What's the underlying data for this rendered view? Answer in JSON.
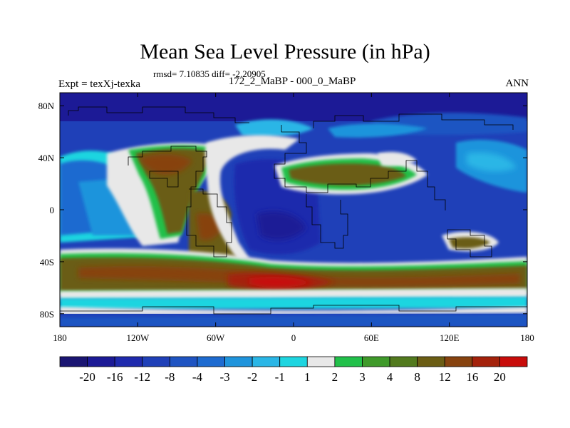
{
  "title": "Mean Sea Level Pressure (in hPa)",
  "stats_line": "rmsd= 7.10835  diff= -2.20905",
  "experiment_label": "Expt = texXj-texka",
  "subtitle": "172_2_MaBP - 000_0_MaBP",
  "season_label": "ANN",
  "map": {
    "lon_range": [
      -180,
      180
    ],
    "lat_range": [
      -90,
      90
    ],
    "x_tick_labels": [
      "180",
      "120W",
      "60W",
      "0",
      "60E",
      "120E",
      "180"
    ],
    "y_tick_labels": [
      "80N",
      "40N",
      "0",
      "40S",
      "80S"
    ]
  },
  "colorbar": {
    "colors": [
      "#1a1572",
      "#1c1a96",
      "#1f2aad",
      "#1f40b8",
      "#1f54c2",
      "#1e6bd0",
      "#1f94dc",
      "#2ab6e6",
      "#1ed5e0",
      "#e8e8e8",
      "#22c04a",
      "#3f9a2a",
      "#527a1e",
      "#6b5d14",
      "#87430f",
      "#a4220b",
      "#c80c0a"
    ],
    "labels": [
      "-20",
      "-16",
      "-12",
      "-8",
      "-4",
      "-3",
      "-2",
      "-1",
      "1",
      "2",
      "3",
      "4",
      "8",
      "12",
      "16",
      "20"
    ]
  },
  "colors": {
    "ocean_background": "#1f40b8",
    "coastline": "#000000"
  }
}
